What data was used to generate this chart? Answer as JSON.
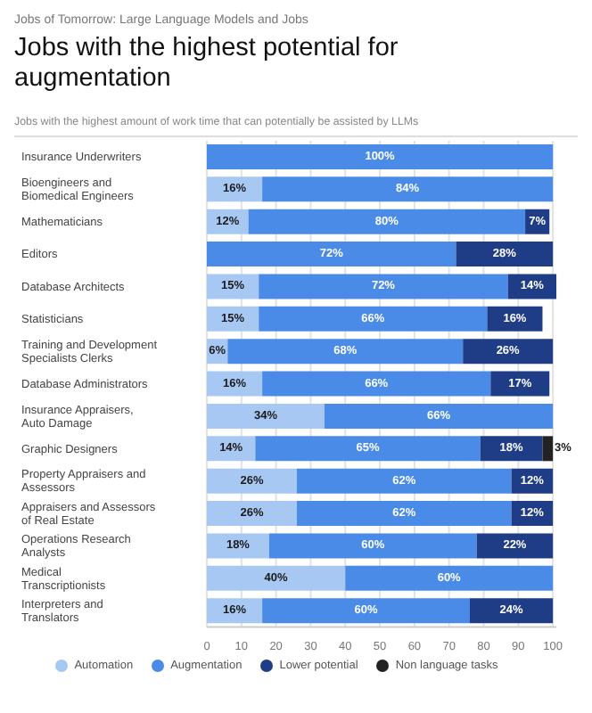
{
  "chart_data": {
    "type": "bar",
    "orientation": "horizontal",
    "stacked": true,
    "title": "Jobs with the highest potential for augmentation",
    "subtitle": "Jobs of Tomorrow: Large Language Models and Jobs",
    "annotations": [
      "Jobs with the highest amount of work time that can potentially be assisted by LLMs"
    ],
    "categories": [
      "Insurance Underwriters",
      "Bioengineers and Biomedical Engineers",
      "Mathematicians",
      "Editors",
      "Database Architects",
      "Statisticians",
      "Training and Development Specialists Clerks",
      "Database Administrators",
      "Insurance Appraisers, Auto Damage",
      "Graphic Designers",
      "Property Appraisers and Assessors",
      "Appraisers and Assessors of Real Estate",
      "Operations Research Analysts",
      "Medical Transcriptionists",
      "Interpreters and Translators"
    ],
    "series": [
      {
        "name": "Automation",
        "color": "#a8c8f4",
        "values": [
          null,
          16,
          12,
          null,
          15,
          15,
          6,
          16,
          34,
          14,
          26,
          26,
          18,
          40,
          16
        ],
        "value_labels": [
          null,
          "16%",
          "12%",
          null,
          "15%",
          "15%",
          "6%",
          "16%",
          "34%",
          "14%",
          "26%",
          "26%",
          "18%",
          "40%",
          "16%"
        ]
      },
      {
        "name": "Augmentation",
        "color": "#4b8be8",
        "values": [
          100,
          84,
          80,
          72,
          72,
          66,
          68,
          66,
          66,
          65,
          62,
          62,
          60,
          60,
          60
        ],
        "value_labels": [
          "100%",
          "84%",
          "80%",
          "72%",
          "72%",
          "66%",
          "68%",
          "66%",
          "66%",
          "65%",
          "62%",
          "62%",
          "60%",
          "60%",
          "60%"
        ]
      },
      {
        "name": "Lower potential",
        "color": "#1f3d87",
        "values": [
          null,
          null,
          7,
          28,
          14,
          16,
          26,
          17,
          null,
          18,
          12,
          12,
          22,
          null,
          24
        ],
        "value_labels": [
          null,
          null,
          "7%",
          "28%",
          "14%",
          "16%",
          "26%",
          "17%",
          null,
          "18%",
          "12%",
          "12%",
          "22%",
          null,
          "24%"
        ]
      },
      {
        "name": "Non language tasks",
        "color": "#222222",
        "values": [
          null,
          null,
          null,
          null,
          null,
          null,
          null,
          null,
          null,
          3,
          null,
          null,
          null,
          null,
          null
        ],
        "value_labels": [
          null,
          null,
          null,
          null,
          null,
          null,
          null,
          null,
          null,
          "3%",
          null,
          null,
          null,
          null,
          null
        ]
      }
    ],
    "xlim": [
      0,
      101
    ],
    "xticks": [
      0,
      10,
      20,
      30,
      40,
      50,
      60,
      70,
      80,
      90,
      100
    ],
    "grid": "x",
    "legend": "bottom"
  }
}
